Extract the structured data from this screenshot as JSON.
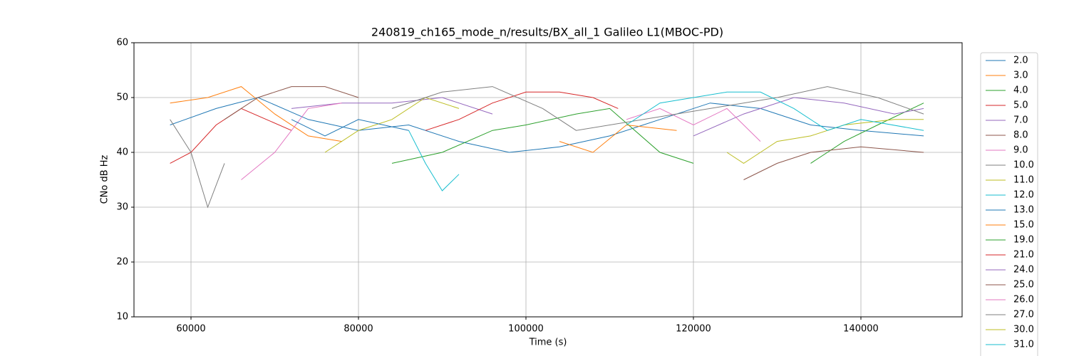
{
  "chart_data": {
    "type": "line",
    "title": "240819_ch165_mode_n/results/BX_all_1 Galileo L1(MBOC-PD)",
    "x_label": "Time (s)",
    "y_label": "CNo dB Hz",
    "xlim": [
      53191,
      152085
    ],
    "ylim": [
      10,
      60
    ],
    "xticks": [
      60000,
      80000,
      100000,
      120000,
      140000
    ],
    "yticks": [
      10,
      20,
      30,
      40,
      50,
      60
    ],
    "grid": true,
    "legend": "outside-right",
    "series": [
      {
        "name": "2.0",
        "color": "#1f77b4",
        "x": [
          57500,
          63000,
          68000,
          74000,
          80000,
          86000,
          92000,
          98000,
          104000,
          110000,
          116000,
          122000,
          128000,
          134000,
          140000,
          147500
        ],
        "values": [
          45,
          48,
          50,
          46,
          44,
          45,
          42,
          40,
          41,
          43,
          46,
          49,
          48,
          45,
          44,
          43
        ]
      },
      {
        "name": "3.0",
        "color": "#ff7f0e",
        "x": [
          57500,
          62000,
          66000,
          70000,
          74000,
          78000
        ],
        "values": [
          49,
          50,
          52,
          47,
          43,
          42
        ]
      },
      {
        "name": "4.0",
        "color": "#2ca02c",
        "x": [
          84000,
          90000,
          96000,
          100000,
          106000,
          110000,
          116000,
          120000
        ],
        "values": [
          38,
          40,
          44,
          45,
          47,
          48,
          40,
          38
        ]
      },
      {
        "name": "5.0",
        "color": "#d62728",
        "x": [
          57500,
          60000,
          63000,
          66000,
          69000,
          72000
        ],
        "values": [
          38,
          40,
          45,
          48,
          46,
          44
        ]
      },
      {
        "name": "7.0",
        "color": "#9467bd",
        "x": [
          72000,
          78000,
          84000,
          90000,
          96000
        ],
        "values": [
          48,
          49,
          49,
          50,
          47
        ]
      },
      {
        "name": "8.0",
        "color": "#8c564b",
        "x": [
          64000,
          68000,
          72000,
          76000,
          80000
        ],
        "values": [
          46,
          50,
          52,
          52,
          50
        ]
      },
      {
        "name": "9.0",
        "color": "#e377c2",
        "x": [
          66000,
          70000,
          74000,
          78000
        ],
        "values": [
          35,
          40,
          48,
          49
        ]
      },
      {
        "name": "10.0",
        "color": "#7f7f7f",
        "x": [
          57500,
          60000,
          62000,
          64000
        ],
        "values": [
          46,
          40,
          30,
          38
        ]
      },
      {
        "name": "11.0",
        "color": "#bcbd22",
        "x": [
          76000,
          80000,
          84000,
          88000,
          92000
        ],
        "values": [
          40,
          44,
          46,
          50,
          48
        ]
      },
      {
        "name": "12.0",
        "color": "#17becf",
        "x": [
          86000,
          88000,
          90000,
          92000
        ],
        "values": [
          44,
          38,
          33,
          36
        ]
      },
      {
        "name": "13.0",
        "color": "#1f77b4",
        "x": [
          72000,
          76000,
          80000,
          86000
        ],
        "values": [
          46,
          43,
          46,
          44
        ]
      },
      {
        "name": "15.0",
        "color": "#ff7f0e",
        "x": [
          104000,
          108000,
          112000,
          118000
        ],
        "values": [
          42,
          40,
          45,
          44
        ]
      },
      {
        "name": "19.0",
        "color": "#2ca02c",
        "x": [
          134000,
          138000,
          142000,
          147500
        ],
        "values": [
          38,
          42,
          45,
          49
        ]
      },
      {
        "name": "21.0",
        "color": "#d62728",
        "x": [
          88000,
          92000,
          96000,
          100000,
          104000,
          108000,
          111000
        ],
        "values": [
          44,
          46,
          49,
          51,
          51,
          50,
          48
        ]
      },
      {
        "name": "24.0",
        "color": "#9467bd",
        "x": [
          120000,
          126000,
          132000,
          138000,
          144000,
          147500
        ],
        "values": [
          43,
          47,
          50,
          49,
          47,
          48
        ]
      },
      {
        "name": "25.0",
        "color": "#8c564b",
        "x": [
          126000,
          130000,
          134000,
          140000,
          147500
        ],
        "values": [
          35,
          38,
          40,
          41,
          40
        ]
      },
      {
        "name": "26.0",
        "color": "#e377c2",
        "x": [
          112000,
          116000,
          120000,
          124000,
          128000
        ],
        "values": [
          46,
          48,
          45,
          48,
          42
        ]
      },
      {
        "name": "27.0",
        "color": "#7f7f7f",
        "x": [
          84000,
          90000,
          96000,
          102000,
          106000,
          130000,
          136000,
          142000,
          147500
        ],
        "values": [
          48,
          51,
          52,
          48,
          44,
          50,
          52,
          50,
          47
        ]
      },
      {
        "name": "30.0",
        "color": "#bcbd22",
        "x": [
          124000,
          126000,
          128000,
          130000,
          134000,
          138000,
          144000,
          147500
        ],
        "values": [
          40,
          38,
          40,
          42,
          43,
          45,
          46,
          46
        ]
      },
      {
        "name": "31.0",
        "color": "#17becf",
        "x": [
          112000,
          116000,
          120000,
          124000,
          128000,
          132000,
          136000,
          140000,
          147500
        ],
        "values": [
          45,
          49,
          50,
          51,
          51,
          48,
          44,
          46,
          44
        ]
      }
    ]
  }
}
